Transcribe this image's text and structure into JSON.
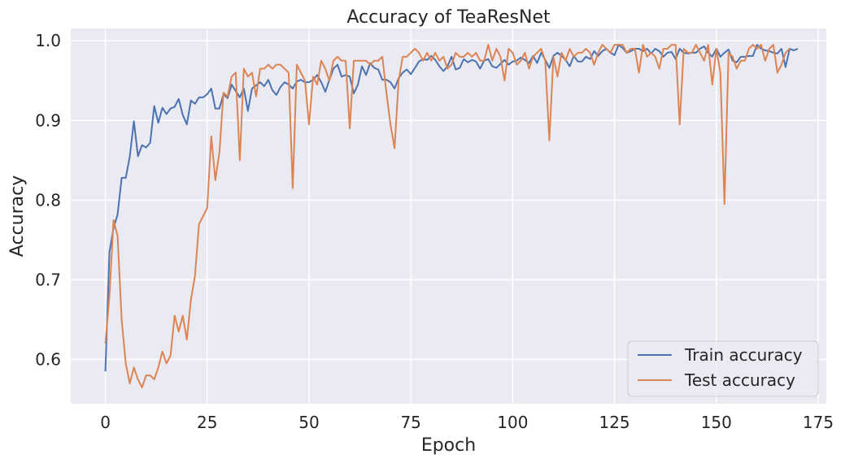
{
  "chart_data": {
    "type": "line",
    "title": "Accuracy of TeaResNet",
    "xlabel": "Epoch",
    "ylabel": "Accuracy",
    "xlim": [
      -8.5,
      177
    ],
    "ylim": [
      0.5445,
      1.0155
    ],
    "xticks": [
      0,
      25,
      50,
      75,
      100,
      125,
      150,
      175
    ],
    "yticks": [
      0.6,
      0.7,
      0.8,
      0.9,
      1.0
    ],
    "ytick_labels": [
      "0.6",
      "0.7",
      "0.8",
      "0.9",
      "1.0"
    ],
    "grid": true,
    "legend_position": "lower-right",
    "background_color": "#eaeaf2",
    "series": [
      {
        "name": "Train accuracy",
        "color": "#4c72b0",
        "values": [
          0.585,
          0.735,
          0.765,
          0.782,
          0.828,
          0.828,
          0.855,
          0.899,
          0.855,
          0.869,
          0.866,
          0.872,
          0.918,
          0.897,
          0.916,
          0.908,
          0.915,
          0.917,
          0.927,
          0.907,
          0.895,
          0.925,
          0.921,
          0.929,
          0.929,
          0.933,
          0.94,
          0.915,
          0.915,
          0.933,
          0.928,
          0.945,
          0.937,
          0.929,
          0.94,
          0.912,
          0.94,
          0.944,
          0.948,
          0.943,
          0.951,
          0.938,
          0.932,
          0.942,
          0.948,
          0.945,
          0.94,
          0.949,
          0.951,
          0.948,
          0.948,
          0.951,
          0.957,
          0.948,
          0.936,
          0.951,
          0.965,
          0.97,
          0.955,
          0.957,
          0.955,
          0.934,
          0.945,
          0.968,
          0.957,
          0.972,
          0.966,
          0.964,
          0.951,
          0.951,
          0.948,
          0.94,
          0.953,
          0.96,
          0.964,
          0.958,
          0.966,
          0.974,
          0.977,
          0.976,
          0.981,
          0.976,
          0.968,
          0.962,
          0.968,
          0.98,
          0.964,
          0.966,
          0.977,
          0.973,
          0.976,
          0.974,
          0.965,
          0.975,
          0.977,
          0.968,
          0.966,
          0.971,
          0.976,
          0.97,
          0.974,
          0.975,
          0.979,
          0.976,
          0.972,
          0.981,
          0.972,
          0.985,
          0.976,
          0.966,
          0.981,
          0.985,
          0.981,
          0.976,
          0.968,
          0.981,
          0.974,
          0.974,
          0.98,
          0.977,
          0.987,
          0.981,
          0.987,
          0.99,
          0.985,
          0.982,
          0.995,
          0.991,
          0.985,
          0.987,
          0.99,
          0.99,
          0.987,
          0.99,
          0.984,
          0.99,
          0.987,
          0.98,
          0.985,
          0.986,
          0.977,
          0.99,
          0.985,
          0.984,
          0.985,
          0.985,
          0.99,
          0.993,
          0.985,
          0.98,
          0.99,
          0.98,
          0.985,
          0.989,
          0.975,
          0.973,
          0.98,
          0.98,
          0.981,
          0.981,
          0.995,
          0.99,
          0.988,
          0.987,
          0.985,
          0.984,
          0.99,
          0.967,
          0.99,
          0.988,
          0.99
        ]
      },
      {
        "name": "Test accuracy",
        "color": "#dd8452",
        "values": [
          0.62,
          0.68,
          0.775,
          0.755,
          0.65,
          0.595,
          0.57,
          0.59,
          0.575,
          0.565,
          0.58,
          0.58,
          0.575,
          0.59,
          0.61,
          0.595,
          0.605,
          0.655,
          0.635,
          0.655,
          0.625,
          0.675,
          0.705,
          0.77,
          0.78,
          0.79,
          0.88,
          0.825,
          0.86,
          0.935,
          0.93,
          0.955,
          0.96,
          0.85,
          0.965,
          0.955,
          0.96,
          0.93,
          0.965,
          0.965,
          0.97,
          0.965,
          0.97,
          0.97,
          0.965,
          0.96,
          0.815,
          0.97,
          0.96,
          0.95,
          0.895,
          0.955,
          0.945,
          0.975,
          0.965,
          0.95,
          0.975,
          0.98,
          0.975,
          0.975,
          0.89,
          0.975,
          0.975,
          0.975,
          0.975,
          0.97,
          0.975,
          0.975,
          0.98,
          0.935,
          0.895,
          0.865,
          0.95,
          0.98,
          0.98,
          0.985,
          0.99,
          0.985,
          0.975,
          0.985,
          0.975,
          0.985,
          0.975,
          0.98,
          0.965,
          0.97,
          0.985,
          0.98,
          0.98,
          0.985,
          0.98,
          0.985,
          0.975,
          0.975,
          0.995,
          0.975,
          0.99,
          0.98,
          0.95,
          0.99,
          0.985,
          0.97,
          0.975,
          0.985,
          0.965,
          0.98,
          0.985,
          0.99,
          0.975,
          0.875,
          0.98,
          0.955,
          0.985,
          0.975,
          0.99,
          0.98,
          0.985,
          0.985,
          0.99,
          0.985,
          0.97,
          0.985,
          0.995,
          0.99,
          0.985,
          0.995,
          0.995,
          0.995,
          0.985,
          0.99,
          0.99,
          0.96,
          0.995,
          0.98,
          0.985,
          0.98,
          0.965,
          0.99,
          0.99,
          0.995,
          0.995,
          0.895,
          0.99,
          0.985,
          0.985,
          0.995,
          0.985,
          0.975,
          0.995,
          0.945,
          0.99,
          0.96,
          0.795,
          0.985,
          0.98,
          0.965,
          0.975,
          0.975,
          0.99,
          0.995,
          0.99,
          0.995,
          0.975,
          0.99,
          0.995,
          0.96,
          0.97,
          0.985,
          0.99
        ]
      }
    ]
  }
}
